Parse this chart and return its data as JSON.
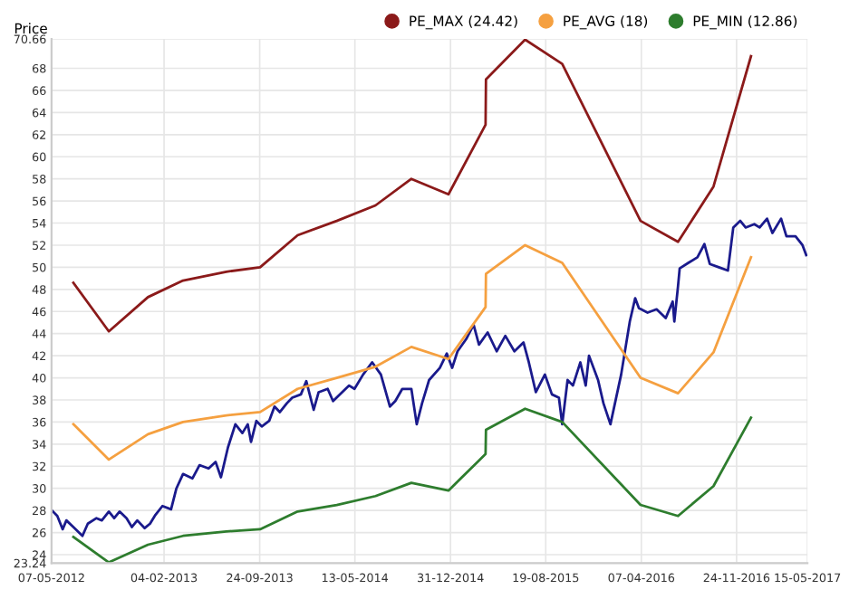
{
  "chart_data": {
    "type": "line",
    "ylabel": "Price",
    "xlim": [
      "2012-05-07",
      "2017-05-15"
    ],
    "ylim": [
      23.24,
      70.66
    ],
    "xticks": [
      {
        "value": "2012-05-07",
        "label": "07-05-2012"
      },
      {
        "value": "2013-02-04",
        "label": "04-02-2013"
      },
      {
        "value": "2013-09-24",
        "label": "24-09-2013"
      },
      {
        "value": "2014-05-13",
        "label": "13-05-2014"
      },
      {
        "value": "2014-12-31",
        "label": "31-12-2014"
      },
      {
        "value": "2015-08-19",
        "label": "19-08-2015"
      },
      {
        "value": "2016-04-07",
        "label": "07-04-2016"
      },
      {
        "value": "2016-11-24",
        "label": "24-11-2016"
      },
      {
        "value": "2017-05-15",
        "label": "15-05-2017"
      }
    ],
    "yticks": [
      23.24,
      24,
      26,
      28,
      30,
      32,
      34,
      36,
      38,
      40,
      42,
      44,
      46,
      48,
      50,
      52,
      54,
      56,
      58,
      60,
      62,
      64,
      66,
      68,
      70.66
    ],
    "grid": true,
    "legend": "top right",
    "marker": "none",
    "line_style": "solid",
    "series": [
      {
        "color": "#1a1a8c",
        "x": [
          "2012-05-08",
          "2012-05-21",
          "2012-06-03",
          "2012-06-12",
          "2012-06-29",
          "2012-07-21",
          "2012-08-03",
          "2012-08-24",
          "2012-09-06",
          "2012-09-23",
          "2012-10-06",
          "2012-10-19",
          "2012-11-05",
          "2012-11-18",
          "2012-12-01",
          "2012-12-19",
          "2013-01-01",
          "2013-01-14",
          "2013-01-31",
          "2013-02-21",
          "2013-03-06",
          "2013-03-22",
          "2013-04-14",
          "2013-05-01",
          "2013-05-23",
          "2013-06-09",
          "2013-06-22",
          "2013-07-09",
          "2013-07-27",
          "2013-08-13",
          "2013-08-26",
          "2013-09-03",
          "2013-09-16",
          "2013-09-29",
          "2013-10-17",
          "2013-10-30",
          "2013-11-12",
          "2013-11-29",
          "2013-12-12",
          "2014-01-02",
          "2014-01-15",
          "2014-02-02",
          "2014-02-14",
          "2014-03-08",
          "2014-03-21",
          "2014-04-12",
          "2014-04-29",
          "2014-05-12",
          "2014-06-02",
          "2014-06-24",
          "2014-07-15",
          "2014-08-06",
          "2014-08-19",
          "2014-09-05",
          "2014-09-27",
          "2014-10-10",
          "2014-10-23",
          "2014-11-09",
          "2014-12-05",
          "2014-12-22",
          "2015-01-04",
          "2015-01-17",
          "2015-02-07",
          "2015-02-25",
          "2015-03-10",
          "2015-03-31",
          "2015-04-22",
          "2015-05-13",
          "2015-06-04",
          "2015-06-26",
          "2015-07-09",
          "2015-07-26",
          "2015-08-17",
          "2015-09-03",
          "2015-09-20",
          "2015-09-28",
          "2015-10-11",
          "2015-10-24",
          "2015-11-11",
          "2015-11-24",
          "2015-12-02",
          "2015-12-24",
          "2016-01-06",
          "2016-01-23",
          "2016-02-18",
          "2016-03-10",
          "2016-03-23",
          "2016-04-01",
          "2016-04-22",
          "2016-05-14",
          "2016-06-05",
          "2016-06-22",
          "2016-06-26",
          "2016-07-05",
          "2016-07-09",
          "2016-07-30",
          "2016-08-21",
          "2016-09-07",
          "2016-09-20",
          "2016-10-12",
          "2016-11-03",
          "2016-11-16",
          "2016-12-03",
          "2016-12-16",
          "2017-01-06",
          "2017-01-19",
          "2017-02-06",
          "2017-02-19",
          "2017-03-12",
          "2017-03-25",
          "2017-04-16",
          "2017-05-03",
          "2017-05-12"
        ],
        "values": [
          28.0,
          27.5,
          26.3,
          27.1,
          26.5,
          25.7,
          26.8,
          27.3,
          27.1,
          27.9,
          27.3,
          27.9,
          27.3,
          26.5,
          27.1,
          26.4,
          26.8,
          27.6,
          28.4,
          28.1,
          30.0,
          31.3,
          30.9,
          32.1,
          31.8,
          32.4,
          31.0,
          33.7,
          35.8,
          35.0,
          35.8,
          34.2,
          36.1,
          35.6,
          36.1,
          37.4,
          36.9,
          37.7,
          38.2,
          38.5,
          39.7,
          37.1,
          38.7,
          39.0,
          37.9,
          38.7,
          39.3,
          39.0,
          40.3,
          41.4,
          40.3,
          37.4,
          37.9,
          39.0,
          39.0,
          35.8,
          37.7,
          39.8,
          40.9,
          42.2,
          40.9,
          42.4,
          43.5,
          44.8,
          43.0,
          44.1,
          42.4,
          43.8,
          42.4,
          43.2,
          41.4,
          38.7,
          40.3,
          38.5,
          38.2,
          35.8,
          39.8,
          39.3,
          41.4,
          39.3,
          42.0,
          39.8,
          37.7,
          35.8,
          40.3,
          45.1,
          47.2,
          46.3,
          45.9,
          46.2,
          45.4,
          46.9,
          45.1,
          48.3,
          49.9,
          50.4,
          50.9,
          52.1,
          50.3,
          50.0,
          49.7,
          53.6,
          54.2,
          53.6,
          53.9,
          53.6,
          54.4,
          53.1,
          54.4,
          52.8,
          52.8,
          52.0,
          51.1
        ]
      },
      {
        "name": "PE_MAX (24.42)",
        "color": "#8b1a1a",
        "x": [
          "2012-06-29",
          "2012-09-23",
          "2012-12-27",
          "2013-03-22",
          "2013-07-05",
          "2013-09-25",
          "2013-12-25",
          "2014-03-30",
          "2014-07-02",
          "2014-09-27",
          "2014-12-26",
          "2015-03-26",
          "2015-03-27",
          "2015-06-30",
          "2015-09-28",
          "2016-04-05",
          "2016-07-05",
          "2016-09-29",
          "2016-12-29"
        ],
        "values": [
          48.6,
          44.2,
          47.3,
          48.8,
          49.6,
          50.0,
          52.9,
          54.2,
          55.6,
          58.0,
          56.6,
          62.9,
          67.0,
          70.6,
          68.4,
          54.2,
          52.3,
          57.3,
          69.1
        ]
      },
      {
        "name": "PE_AVG (18)",
        "color": "#f5a040",
        "x": [
          "2012-06-29",
          "2012-09-23",
          "2012-12-27",
          "2013-03-22",
          "2013-07-05",
          "2013-09-25",
          "2013-12-25",
          "2014-03-30",
          "2014-07-02",
          "2014-09-27",
          "2014-12-26",
          "2015-03-26",
          "2015-03-27",
          "2015-06-30",
          "2015-09-28",
          "2016-04-05",
          "2016-07-05",
          "2016-09-29",
          "2016-12-29"
        ],
        "values": [
          35.8,
          32.6,
          34.9,
          36.0,
          36.6,
          36.9,
          39.0,
          40.0,
          41.0,
          42.8,
          41.7,
          46.4,
          49.4,
          52.0,
          50.4,
          40.0,
          38.6,
          42.3,
          50.9
        ]
      },
      {
        "name": "PE_MIN (12.86)",
        "color": "#2e7d2e",
        "x": [
          "2012-06-29",
          "2012-09-23",
          "2012-12-27",
          "2013-03-22",
          "2013-07-05",
          "2013-09-25",
          "2013-12-25",
          "2014-03-30",
          "2014-07-02",
          "2014-09-27",
          "2014-12-26",
          "2015-03-26",
          "2015-03-27",
          "2015-06-30",
          "2015-09-28",
          "2016-04-05",
          "2016-07-05",
          "2016-09-29",
          "2016-12-29"
        ],
        "values": [
          25.6,
          23.3,
          24.9,
          25.7,
          26.1,
          26.3,
          27.9,
          28.5,
          29.3,
          30.5,
          29.8,
          33.1,
          35.3,
          37.2,
          36.0,
          28.5,
          27.5,
          30.2,
          36.4
        ]
      }
    ]
  }
}
